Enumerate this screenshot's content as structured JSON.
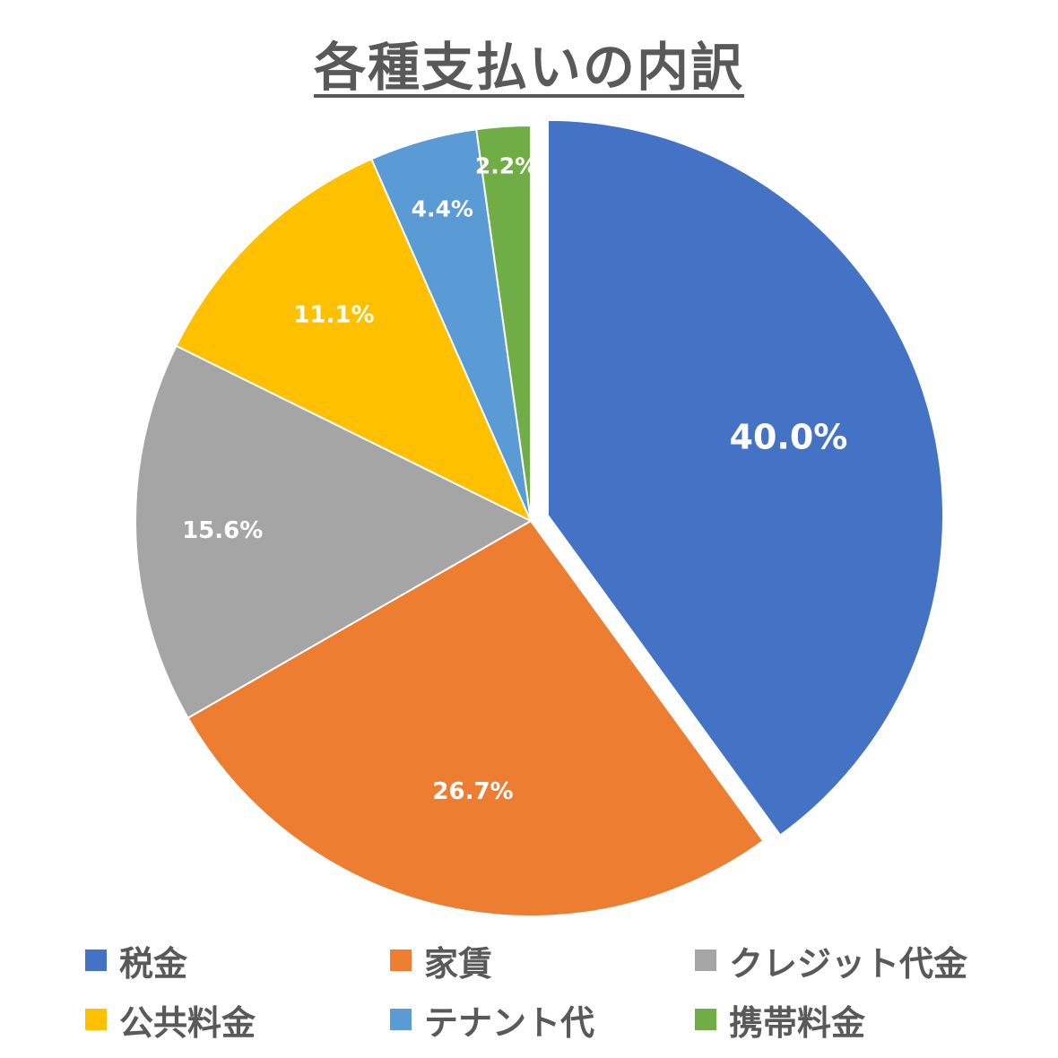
{
  "chart_data": {
    "type": "pie",
    "title": "各種支払いの内訳",
    "categories": [
      "税金",
      "家賃",
      "クレジット代金",
      "公共料金",
      "テナント代",
      "携帯料金"
    ],
    "values": [
      40.0,
      26.7,
      15.6,
      11.1,
      4.4,
      2.2
    ],
    "data_labels": [
      "40.0%",
      "26.7%",
      "15.6%",
      "11.1%",
      "4.4%",
      "2.2%"
    ],
    "colors": [
      "#4472C4",
      "#ED7D31",
      "#A5A5A5",
      "#FFC000",
      "#5B9BD5",
      "#70AD47"
    ],
    "exploded_slice": "税金",
    "start_angle": "top, clockwise",
    "legend_position": "bottom"
  }
}
